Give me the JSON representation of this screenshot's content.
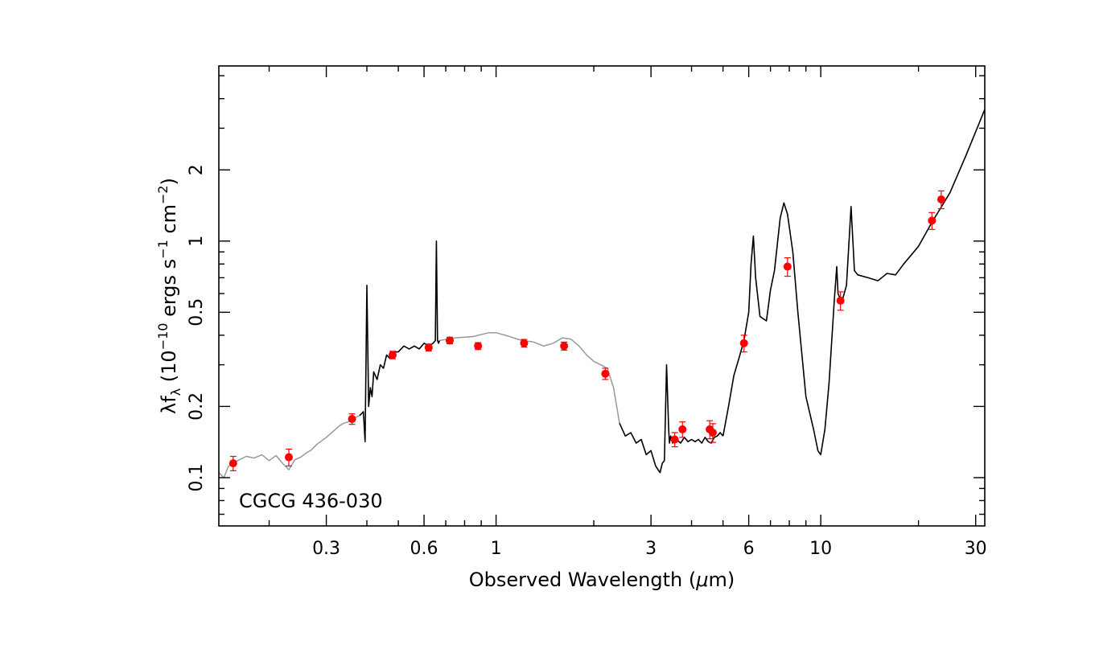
{
  "chart_data": {
    "type": "scatter",
    "x_scale": "log",
    "y_scale": "log",
    "xlim": [
      0.14,
      32
    ],
    "ylim": [
      0.0625,
      5.5
    ],
    "xlabel_parts": [
      "Observed Wavelength (",
      "μ",
      "m)"
    ],
    "ylabel_parts": [
      "λf",
      "λ",
      " (10",
      "−10",
      " ergs s",
      "−1",
      " cm",
      "−2",
      ")"
    ],
    "annotation": "CGCG 436-030",
    "x_ticks": [
      {
        "value": 0.3,
        "label": "0.3"
      },
      {
        "value": 0.6,
        "label": "0.6"
      },
      {
        "value": 1,
        "label": "1"
      },
      {
        "value": 3,
        "label": "3"
      },
      {
        "value": 6,
        "label": "6"
      },
      {
        "value": 10,
        "label": "10"
      },
      {
        "value": 30,
        "label": "30"
      }
    ],
    "y_ticks": [
      {
        "value": 0.1,
        "label": "0.1"
      },
      {
        "value": 0.2,
        "label": "0.2"
      },
      {
        "value": 0.5,
        "label": "0.5"
      },
      {
        "value": 1,
        "label": "1"
      },
      {
        "value": 2,
        "label": "2"
      }
    ],
    "colors": {
      "points": "#ff0000",
      "spectrum": "#000000",
      "model": "#999999"
    },
    "series": [
      {
        "style": "model (grey)",
        "x": [
          0.14,
          0.145,
          0.15,
          0.16,
          0.17,
          0.18,
          0.19,
          0.2,
          0.21,
          0.22,
          0.23,
          0.24,
          0.25,
          0.26,
          0.27,
          0.28,
          0.29,
          0.3,
          0.31,
          0.32,
          0.33,
          0.34,
          0.35,
          0.36,
          0.37,
          0.38
        ],
        "y": [
          0.105,
          0.1,
          0.112,
          0.118,
          0.123,
          0.121,
          0.125,
          0.118,
          0.124,
          0.115,
          0.108,
          0.119,
          0.122,
          0.127,
          0.131,
          0.138,
          0.143,
          0.148,
          0.154,
          0.16,
          0.166,
          0.17,
          0.172,
          0.176,
          0.18,
          0.183
        ]
      },
      {
        "style": "optical spectrum (black)",
        "x": [
          0.38,
          0.39,
          0.395,
          0.4,
          0.405,
          0.41,
          0.415,
          0.42,
          0.43,
          0.44,
          0.45,
          0.46,
          0.47,
          0.48,
          0.5,
          0.52,
          0.54,
          0.56,
          0.58,
          0.6,
          0.62,
          0.64,
          0.65,
          0.655,
          0.66,
          0.665,
          0.67
        ],
        "y": [
          0.183,
          0.19,
          0.142,
          0.65,
          0.2,
          0.24,
          0.22,
          0.28,
          0.26,
          0.3,
          0.29,
          0.33,
          0.32,
          0.34,
          0.34,
          0.36,
          0.35,
          0.36,
          0.35,
          0.37,
          0.36,
          0.37,
          0.38,
          1.0,
          0.38,
          0.37,
          0.38
        ]
      },
      {
        "style": "model (grey)",
        "x": [
          0.67,
          0.75,
          0.85,
          0.95,
          1.0,
          1.1,
          1.2,
          1.3,
          1.4,
          1.5,
          1.6,
          1.7,
          1.8,
          1.9,
          2.0,
          2.1,
          2.2,
          2.3,
          2.4
        ],
        "y": [
          0.38,
          0.39,
          0.395,
          0.41,
          0.41,
          0.395,
          0.38,
          0.375,
          0.36,
          0.37,
          0.39,
          0.385,
          0.36,
          0.33,
          0.31,
          0.3,
          0.29,
          0.24,
          0.17
        ]
      },
      {
        "style": "near-IR spectrum (black)",
        "x": [
          2.4,
          2.5,
          2.6,
          2.7,
          2.8,
          2.9,
          3.0,
          3.1,
          3.2,
          3.25,
          3.3,
          3.35,
          3.4,
          3.42,
          3.45,
          3.5,
          3.6,
          3.7,
          3.8,
          3.9,
          4.0,
          4.1,
          4.2,
          4.3,
          4.4,
          4.5,
          4.6,
          4.7,
          4.8,
          4.9,
          5.0
        ],
        "y": [
          0.17,
          0.15,
          0.155,
          0.14,
          0.145,
          0.125,
          0.13,
          0.112,
          0.105,
          0.115,
          0.118,
          0.3,
          0.16,
          0.14,
          0.15,
          0.14,
          0.145,
          0.14,
          0.148,
          0.142,
          0.145,
          0.142,
          0.145,
          0.14,
          0.148,
          0.142,
          0.14,
          0.148,
          0.15,
          0.155,
          0.15
        ]
      },
      {
        "style": "mid-IR spectrum (black)",
        "x": [
          5.0,
          5.2,
          5.4,
          5.6,
          5.8,
          6.0,
          6.1,
          6.2,
          6.3,
          6.5,
          6.8,
          7.0,
          7.2,
          7.5,
          7.7,
          7.9,
          8.2,
          8.5,
          9.0,
          9.5,
          9.8,
          10.0,
          10.3,
          10.6,
          11.0,
          11.2,
          11.3,
          11.6,
          12.0,
          12.4,
          12.7,
          13.0,
          14.0,
          15.0,
          16.0,
          17.0,
          18.0,
          20.0,
          22.0,
          25.0,
          28.0,
          32.0
        ],
        "y": [
          0.15,
          0.2,
          0.27,
          0.32,
          0.38,
          0.5,
          0.8,
          1.05,
          0.7,
          0.48,
          0.46,
          0.62,
          0.75,
          1.25,
          1.45,
          1.3,
          0.9,
          0.5,
          0.22,
          0.16,
          0.13,
          0.125,
          0.16,
          0.25,
          0.55,
          0.78,
          0.6,
          0.55,
          0.65,
          1.4,
          0.75,
          0.72,
          0.7,
          0.68,
          0.73,
          0.72,
          0.8,
          0.95,
          1.2,
          1.6,
          2.3,
          3.6
        ]
      }
    ],
    "points": {
      "x": [
        0.155,
        0.23,
        0.36,
        0.48,
        0.62,
        0.72,
        0.88,
        1.22,
        1.62,
        2.17,
        3.55,
        3.75,
        4.55,
        4.65,
        5.8,
        7.9,
        11.5,
        22.0,
        23.5
      ],
      "y": [
        0.115,
        0.122,
        0.177,
        0.33,
        0.355,
        0.38,
        0.36,
        0.37,
        0.36,
        0.275,
        0.145,
        0.16,
        0.16,
        0.155,
        0.37,
        0.78,
        0.56,
        1.22,
        1.5
      ],
      "err": [
        0.008,
        0.01,
        0.009,
        0.012,
        0.012,
        0.012,
        0.012,
        0.014,
        0.014,
        0.015,
        0.01,
        0.012,
        0.014,
        0.014,
        0.03,
        0.07,
        0.05,
        0.1,
        0.13
      ]
    }
  }
}
